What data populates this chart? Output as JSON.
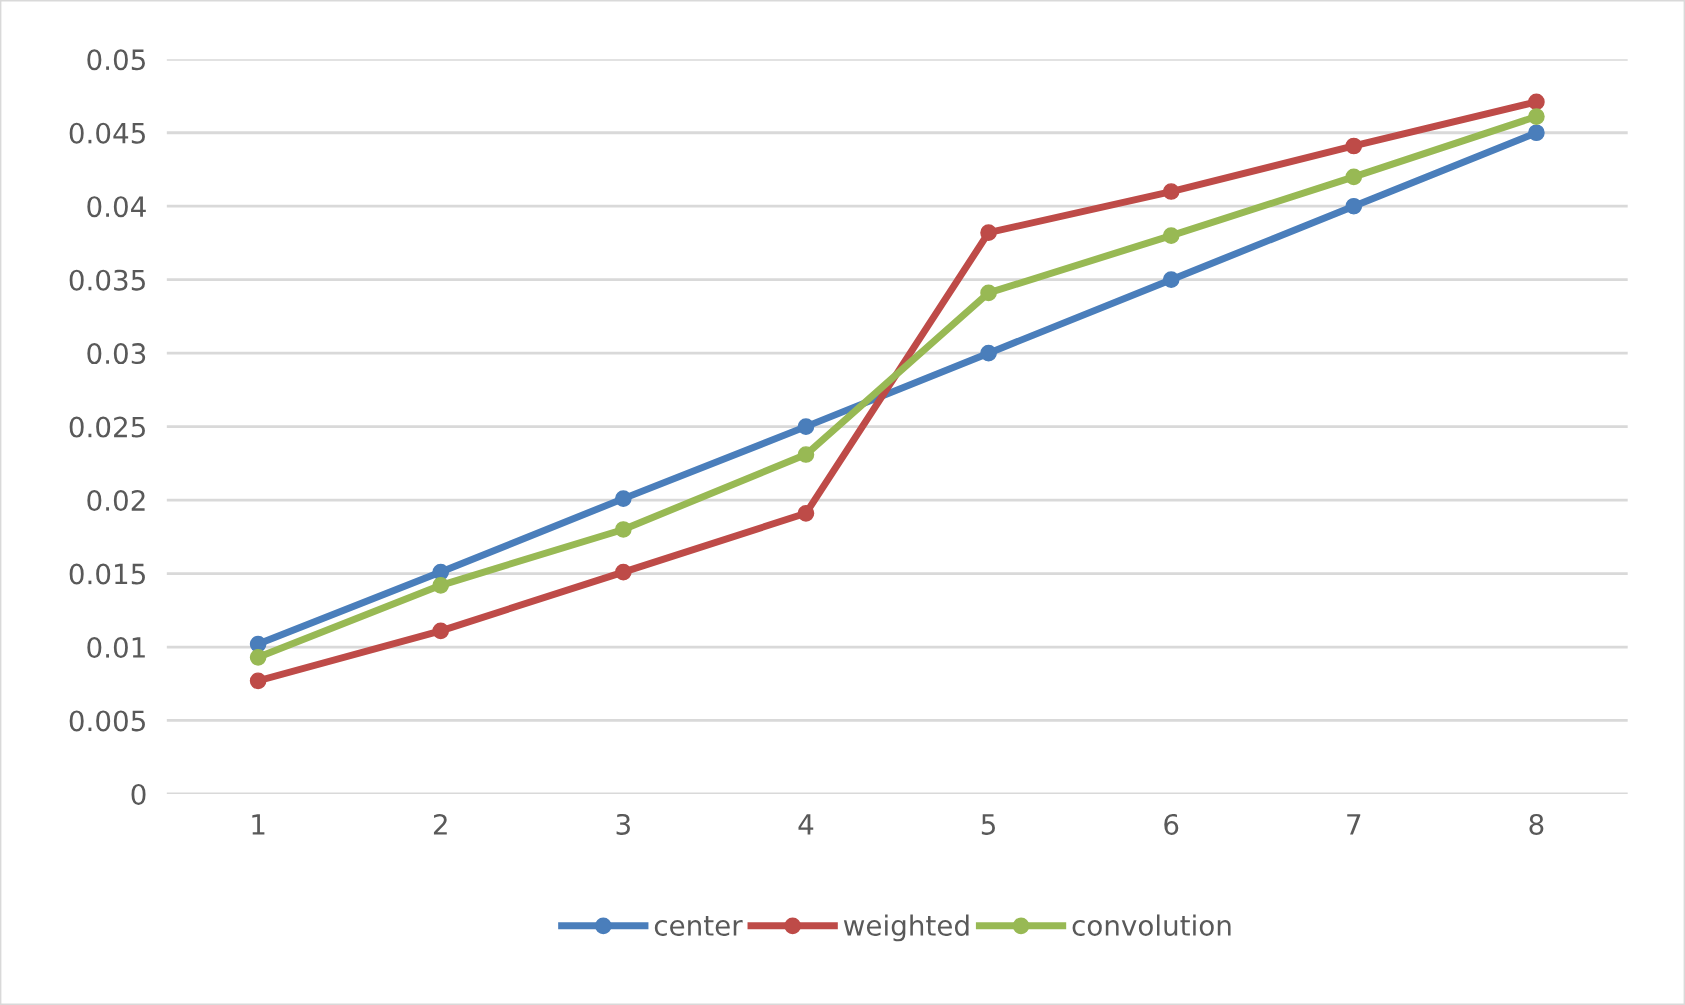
{
  "chart_data": {
    "type": "line",
    "categories": [
      "1",
      "2",
      "3",
      "4",
      "5",
      "6",
      "7",
      "8"
    ],
    "series": [
      {
        "name": "center",
        "color": "#4a7ebb",
        "values": [
          0.0102,
          0.0151,
          0.0201,
          0.025,
          0.03,
          0.035,
          0.04,
          0.045
        ]
      },
      {
        "name": "weighted",
        "color": "#be4b48",
        "values": [
          0.0077,
          0.0111,
          0.0151,
          0.0191,
          0.0382,
          0.041,
          0.0441,
          0.0471
        ]
      },
      {
        "name": "convolution",
        "color": "#98b954",
        "values": [
          0.0093,
          0.0142,
          0.018,
          0.0231,
          0.0341,
          0.038,
          0.042,
          0.0461
        ]
      }
    ],
    "ylim": [
      0,
      0.05
    ],
    "yticks": [
      0,
      0.005,
      0.01,
      0.015,
      0.02,
      0.025,
      0.03,
      0.035,
      0.04,
      0.045,
      0.05
    ],
    "grid": "y",
    "legend": "bottom",
    "marker": "circle",
    "line_style": "solid"
  }
}
